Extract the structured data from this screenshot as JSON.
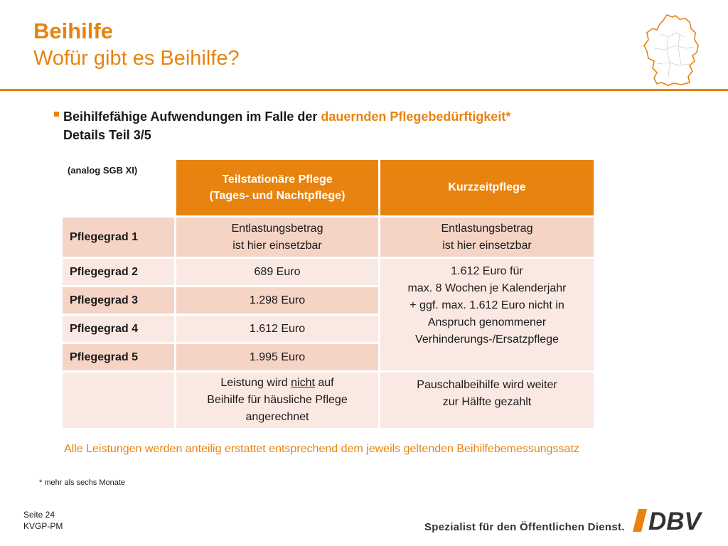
{
  "header": {
    "title": "Beihilfe",
    "subtitle": "Wofür gibt es Beihilfe?"
  },
  "icons": {
    "map": "germany-map-outline",
    "bullet": "square-bullet",
    "logo": "dbv-logo"
  },
  "colors": {
    "accent": "#e8830f",
    "cell_dark": "#f5d3c5",
    "cell_light": "#fae9e2"
  },
  "bullet": {
    "text_before": "Beihilfefähige Aufwendungen im Falle der ",
    "highlight": "dauernden Pflegebedürftigkeit*",
    "line2": "Details Teil 3/5"
  },
  "table": {
    "corner_label": "(analog SGB XI)",
    "col1_title": "Teilstationäre Pflege",
    "col1_subtitle": "(Tages- und Nachtpflege)",
    "col2_title": "Kurzzeitpflege",
    "rows": [
      {
        "label": "Pflegegrad 1",
        "col1_line1": "Entlastungsbetrag",
        "col1_line2": "ist hier einsetzbar",
        "col2_line1": "Entlastungsbetrag",
        "col2_line2": "ist hier einsetzbar"
      },
      {
        "label": "Pflegegrad 2",
        "col1": "689 Euro"
      },
      {
        "label": "Pflegegrad 3",
        "col1": "1.298 Euro"
      },
      {
        "label": "Pflegegrad 4",
        "col1": "1.612 Euro"
      },
      {
        "label": "Pflegegrad 5",
        "col1": "1.995 Euro"
      }
    ],
    "col2_merged": {
      "line1": "1.612 Euro für",
      "line2": "max. 8 Wochen je Kalenderjahr",
      "line3": "+ ggf. max. 1.612 Euro nicht in",
      "line4": "Anspruch genommener",
      "line5": "Verhinderungs-/Ersatzpflege"
    },
    "last_row": {
      "col1_part1": "Leistung wird ",
      "col1_underlined": "nicht",
      "col1_part2": " auf",
      "col1_line2": "Beihilfe für häusliche Pflege",
      "col1_line3": "angerechnet",
      "col2_line1": "Pauschalbeihilfe wird weiter",
      "col2_line2": "zur Hälfte gezahlt"
    }
  },
  "note": "Alle Leistungen werden anteilig erstattet entsprechend dem jeweils geltenden Beihilfebemessungssatz",
  "footnote": "* mehr als sechs Monate",
  "footer": {
    "page": "Seite 24",
    "code": "KVGP-PM",
    "slogan": "Spezialist für den Öffentlichen Dienst.",
    "logo_text": "DBV"
  }
}
